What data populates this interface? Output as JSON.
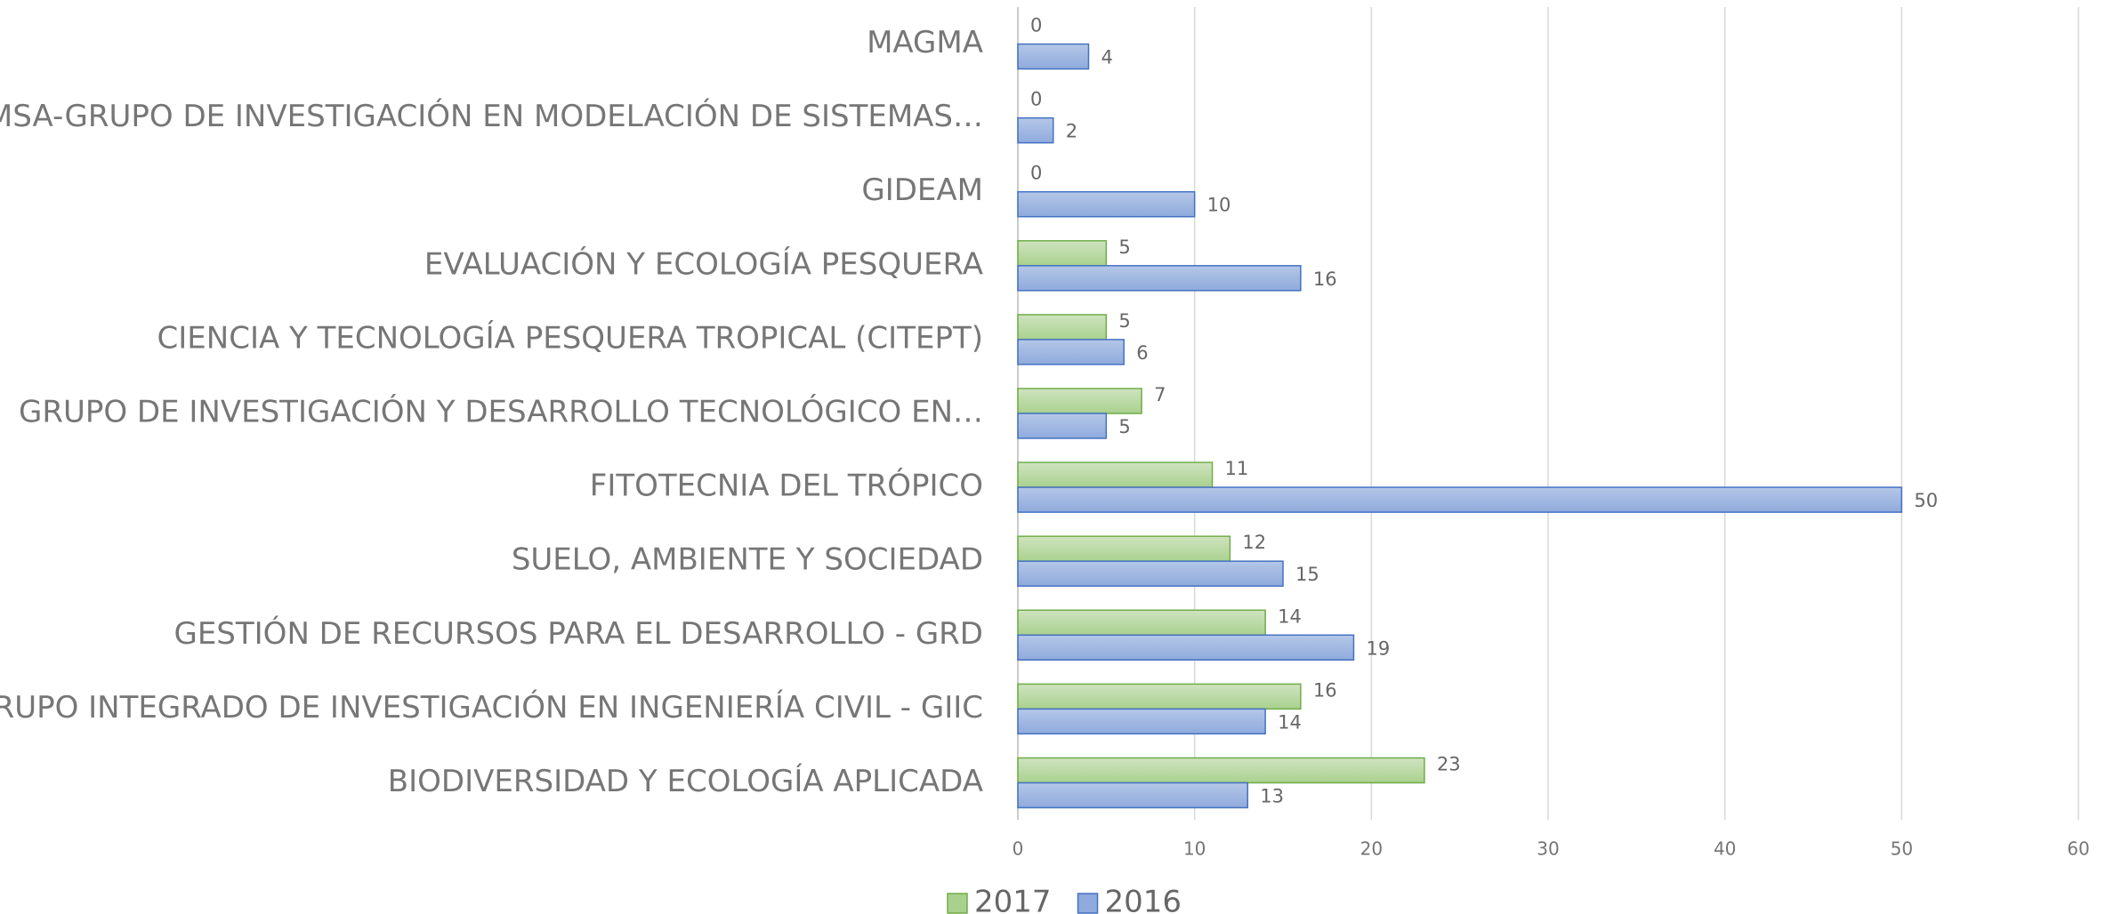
{
  "chart_data": {
    "type": "bar",
    "orientation": "horizontal",
    "categories": [
      "MAGMA",
      "GIMSA-GRUPO DE INVESTIGACIÓN EN MODELACIÓN DE SISTEMAS…",
      "GIDEAM",
      "EVALUACIÓN Y ECOLOGÍA PESQUERA",
      "CIENCIA Y TECNOLOGÍA PESQUERA TROPICAL (CITEPT)",
      "GRUPO DE INVESTIGACIÓN Y DESARROLLO TECNOLÓGICO EN…",
      "FITOTECNIA DEL TRÓPICO",
      "SUELO, AMBIENTE Y SOCIEDAD",
      "GESTIÓN DE RECURSOS PARA EL DESARROLLO - GRD",
      "GRUPO INTEGRADO DE INVESTIGACIÓN EN INGENIERÍA CIVIL - GIIC",
      "BIODIVERSIDAD Y ECOLOGÍA APLICADA"
    ],
    "series": [
      {
        "name": "2017",
        "color": "#a9d18e",
        "values": [
          0,
          0,
          0,
          5,
          5,
          7,
          11,
          12,
          14,
          16,
          23
        ]
      },
      {
        "name": "2016",
        "color": "#8faadc",
        "values": [
          4,
          2,
          10,
          16,
          6,
          5,
          50,
          15,
          19,
          14,
          13
        ]
      }
    ],
    "xlim": [
      0,
      60
    ],
    "xticks": [
      0,
      10,
      20,
      30,
      40,
      50,
      60
    ],
    "grid": true,
    "legend": "bottom"
  }
}
